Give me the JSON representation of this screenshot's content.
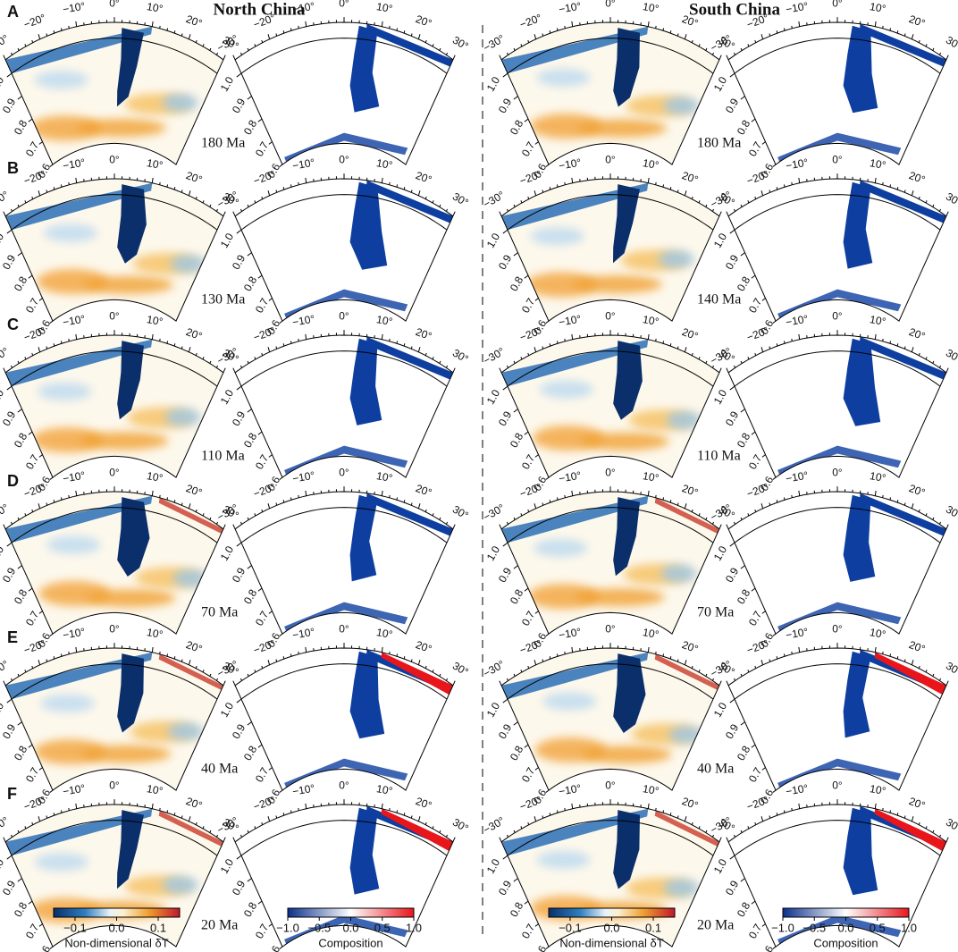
{
  "columns": [
    {
      "title": "North China"
    },
    {
      "title": "South China"
    }
  ],
  "panel_letters": [
    "A",
    "B",
    "C",
    "D",
    "E",
    "F"
  ],
  "angle_ticks": [
    "−30°",
    "−20°",
    "−10°",
    "0°",
    "10°",
    "20°",
    "30°"
  ],
  "radius_ticks": [
    "0.6",
    "0.7",
    "0.8",
    "0.9",
    "1.0"
  ],
  "ages": {
    "north": [
      "180 Ma",
      "130 Ma",
      "110 Ma",
      "70 Ma",
      "40 Ma",
      "20 Ma"
    ],
    "south": [
      "180 Ma",
      "140 Ma",
      "110 Ma",
      "70 Ma",
      "40 Ma",
      "20 Ma"
    ]
  },
  "colorbars": [
    {
      "label": "Non-dimensional δT",
      "ticks": [
        "−0.1",
        "0.0",
        "0.1"
      ]
    },
    {
      "label": "Composition",
      "ticks": [
        "−1.0",
        "−0.5",
        "0.0",
        "0.5",
        "1.0"
      ]
    }
  ]
}
